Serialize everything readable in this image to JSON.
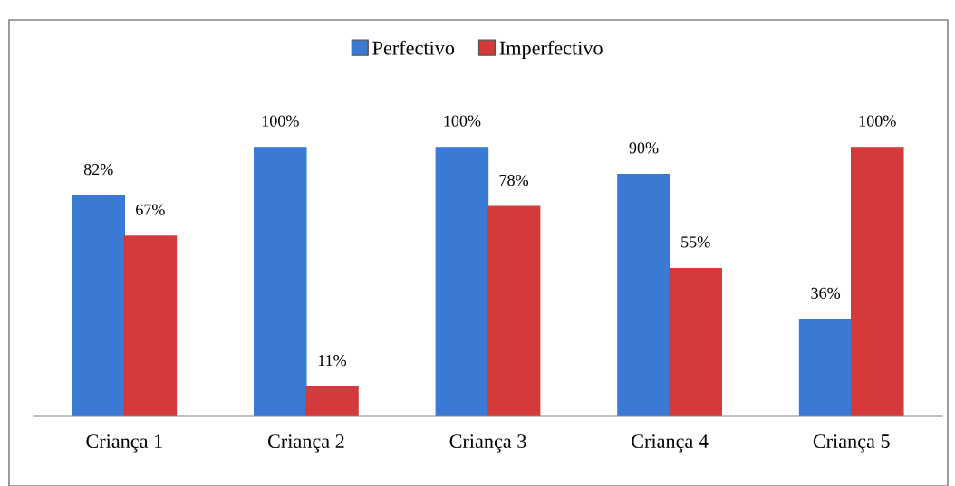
{
  "chart_data": {
    "type": "bar",
    "categories": [
      "Criança 1",
      "Criança 2",
      "Criança 3",
      "Criança 4",
      "Criança 5"
    ],
    "series": [
      {
        "name": "Perfectivo",
        "color": "#3a7ad4",
        "values": [
          82,
          100,
          100,
          90,
          36
        ],
        "value_labels": [
          "82%",
          "100%",
          "100%",
          "90%",
          "36%"
        ]
      },
      {
        "name": "Imperfectivo",
        "color": "#d43a3a",
        "values": [
          67,
          11,
          78,
          55,
          100
        ],
        "value_labels": [
          "67%",
          "11%",
          "78%",
          "55%",
          "100%"
        ]
      }
    ],
    "legend": "top",
    "grid": false
  }
}
